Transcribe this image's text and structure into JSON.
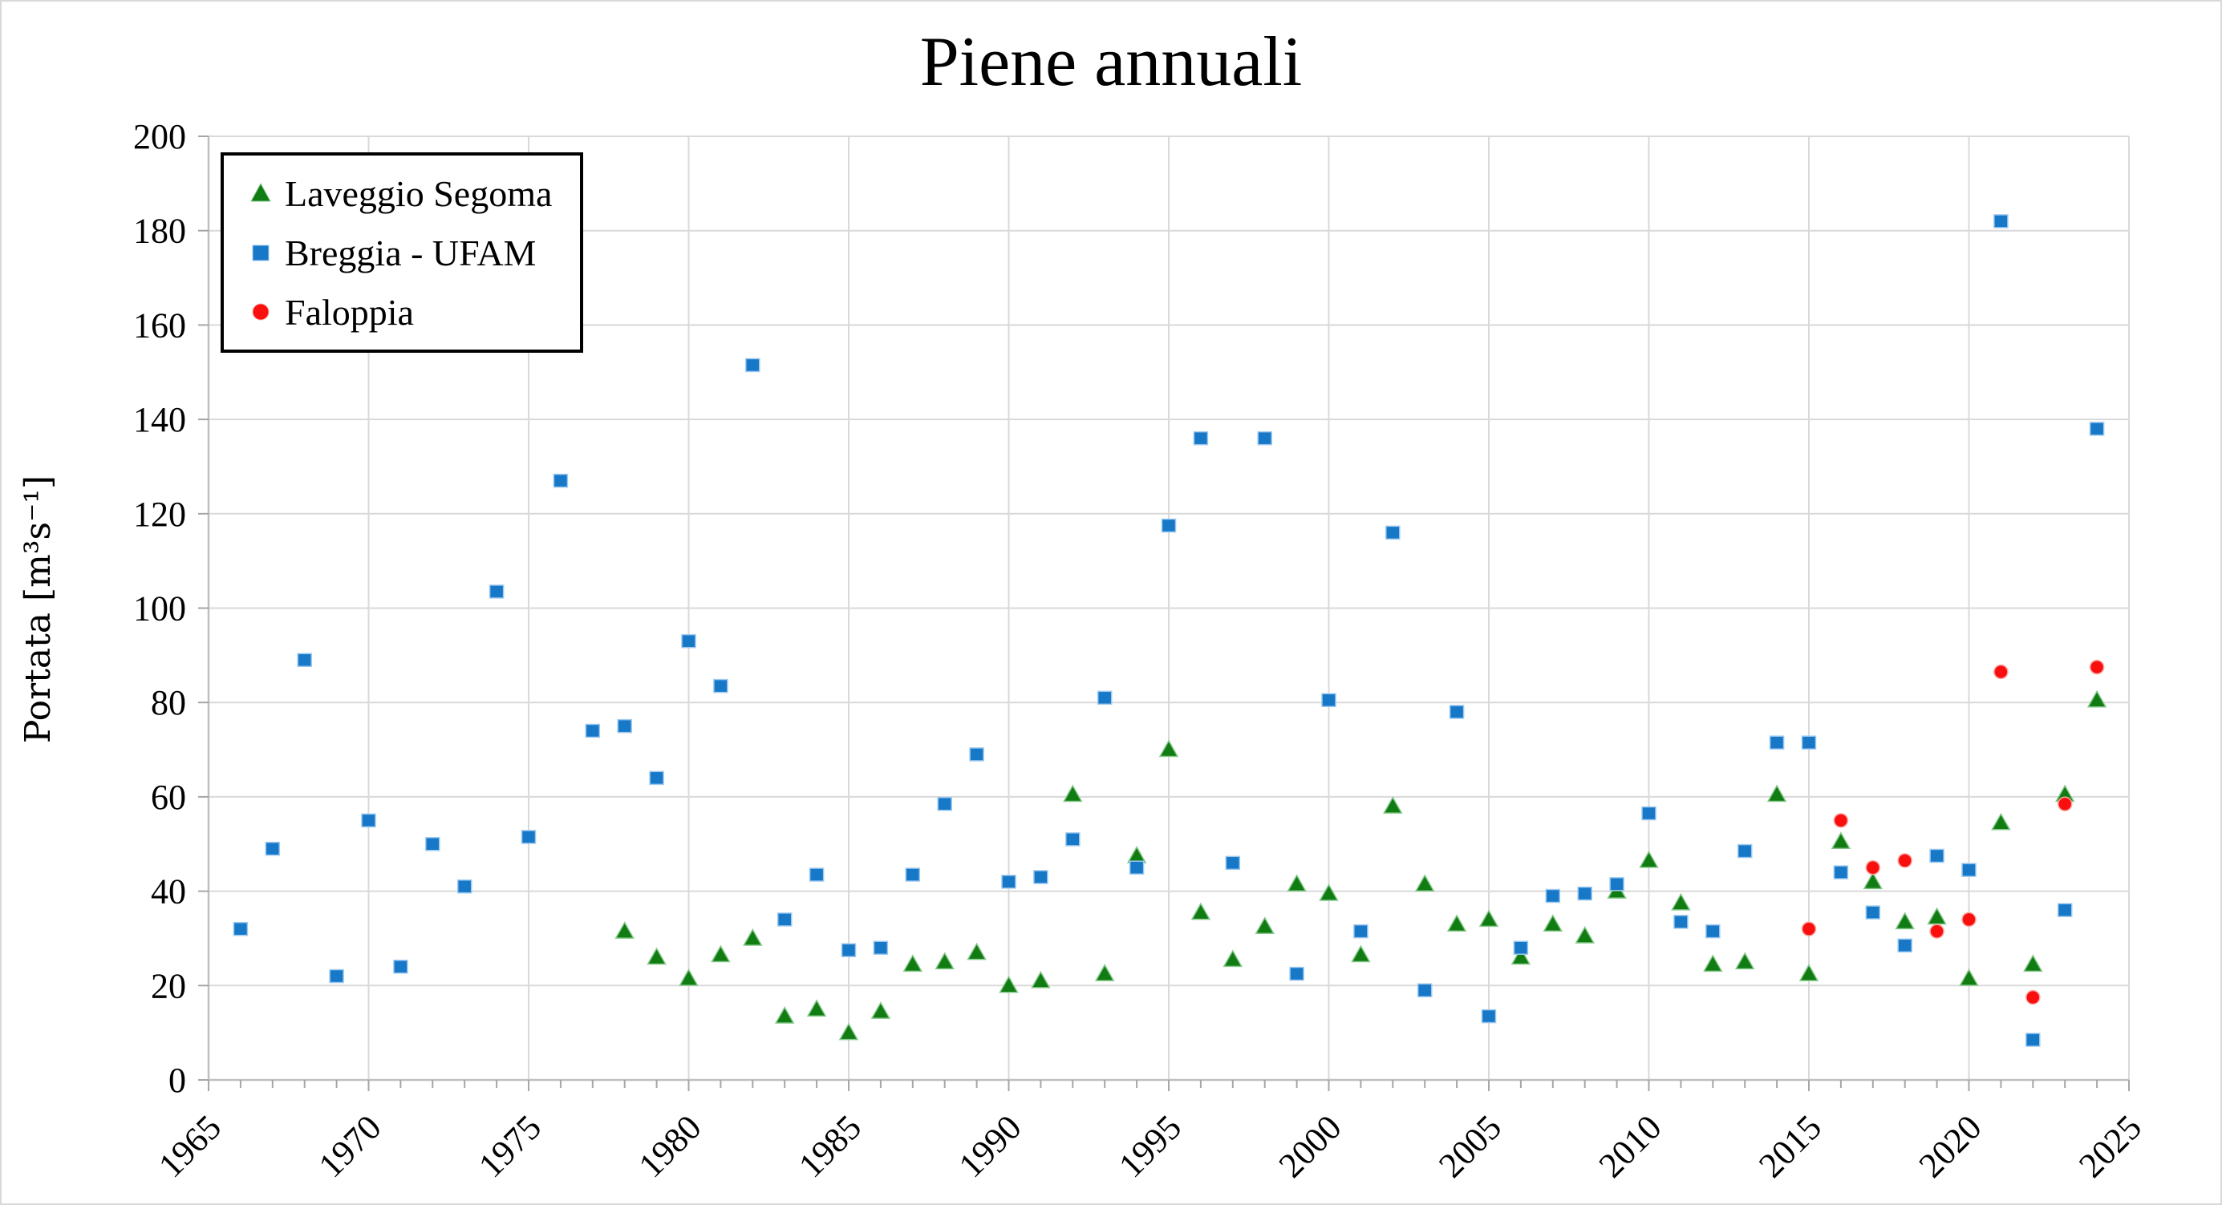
{
  "chart_data": {
    "type": "scatter",
    "title": "Piene annuali",
    "xlabel": "",
    "ylabel": "Portata [m³s⁻¹]",
    "xlim": [
      1965,
      2025
    ],
    "ylim": [
      0,
      200
    ],
    "x_ticks": [
      1965,
      1970,
      1975,
      1980,
      1985,
      1990,
      1995,
      2000,
      2005,
      2010,
      2015,
      2020,
      2025
    ],
    "x_minor_tick_step": 1,
    "y_ticks": [
      0,
      20,
      40,
      60,
      80,
      100,
      120,
      140,
      160,
      180,
      200
    ],
    "grid": true,
    "legend_position": "inside-top-left",
    "grid_color": "#d9d9d9",
    "axis_color": "#bfbfbf",
    "tick_color": "#a6a6a6",
    "series": [
      {
        "name": "Laveggio Segoma",
        "marker": "triangle",
        "color": "#107C12",
        "edge": "#86c98c",
        "points": [
          [
            1978,
            31.5
          ],
          [
            1979,
            26
          ],
          [
            1980,
            21.5
          ],
          [
            1981,
            26.5
          ],
          [
            1982,
            30
          ],
          [
            1983,
            13.5
          ],
          [
            1984,
            15
          ],
          [
            1985,
            10
          ],
          [
            1986,
            14.5
          ],
          [
            1987,
            24.5
          ],
          [
            1988,
            25
          ],
          [
            1989,
            27
          ],
          [
            1990,
            20
          ],
          [
            1991,
            21
          ],
          [
            1992,
            60.5
          ],
          [
            1993,
            22.5
          ],
          [
            1994,
            47.5
          ],
          [
            1995,
            70
          ],
          [
            1996,
            35.5
          ],
          [
            1997,
            25.5
          ],
          [
            1998,
            32.5
          ],
          [
            1999,
            41.5
          ],
          [
            2000,
            39.5
          ],
          [
            2001,
            26.5
          ],
          [
            2002,
            58
          ],
          [
            2003,
            41.5
          ],
          [
            2004,
            33
          ],
          [
            2005,
            34
          ],
          [
            2006,
            26
          ],
          [
            2007,
            33
          ],
          [
            2008,
            30.5
          ],
          [
            2009,
            40
          ],
          [
            2010,
            46.5
          ],
          [
            2011,
            37.5
          ],
          [
            2012,
            24.5
          ],
          [
            2013,
            25
          ],
          [
            2014,
            60.5
          ],
          [
            2015,
            22.5
          ],
          [
            2016,
            50.5
          ],
          [
            2017,
            42
          ],
          [
            2018,
            33.5
          ],
          [
            2019,
            34.5
          ],
          [
            2020,
            21.5
          ],
          [
            2021,
            54.5
          ],
          [
            2022,
            24.5
          ],
          [
            2023,
            60.5
          ],
          [
            2024,
            80.5
          ]
        ]
      },
      {
        "name": "Breggia - UFAM",
        "marker": "square",
        "color": "#1878C8",
        "edge": "#9dc9f0",
        "points": [
          [
            1966,
            32
          ],
          [
            1967,
            49
          ],
          [
            1968,
            89
          ],
          [
            1969,
            22
          ],
          [
            1970,
            55
          ],
          [
            1971,
            24
          ],
          [
            1972,
            50
          ],
          [
            1973,
            41
          ],
          [
            1974,
            103.5
          ],
          [
            1975,
            51.5
          ],
          [
            1976,
            127
          ],
          [
            1977,
            74
          ],
          [
            1978,
            75
          ],
          [
            1979,
            64
          ],
          [
            1980,
            93
          ],
          [
            1981,
            83.5
          ],
          [
            1982,
            151.5
          ],
          [
            1983,
            34
          ],
          [
            1984,
            43.5
          ],
          [
            1985,
            27.5
          ],
          [
            1986,
            28
          ],
          [
            1987,
            43.5
          ],
          [
            1988,
            58.5
          ],
          [
            1989,
            69
          ],
          [
            1990,
            42
          ],
          [
            1991,
            43
          ],
          [
            1992,
            51
          ],
          [
            1993,
            81
          ],
          [
            1994,
            45
          ],
          [
            1995,
            117.5
          ],
          [
            1996,
            136
          ],
          [
            1997,
            46
          ],
          [
            1998,
            136
          ],
          [
            1999,
            22.5
          ],
          [
            2000,
            80.5
          ],
          [
            2001,
            31.5
          ],
          [
            2002,
            116
          ],
          [
            2003,
            19
          ],
          [
            2004,
            78
          ],
          [
            2005,
            13.5
          ],
          [
            2006,
            28
          ],
          [
            2007,
            39
          ],
          [
            2008,
            39.5
          ],
          [
            2009,
            41.5
          ],
          [
            2010,
            56.5
          ],
          [
            2011,
            33.5
          ],
          [
            2012,
            31.5
          ],
          [
            2013,
            48.5
          ],
          [
            2014,
            71.5
          ],
          [
            2015,
            71.5
          ],
          [
            2016,
            44
          ],
          [
            2017,
            35.5
          ],
          [
            2018,
            28.5
          ],
          [
            2019,
            47.5
          ],
          [
            2020,
            44.5
          ],
          [
            2021,
            182
          ],
          [
            2022,
            8.5
          ],
          [
            2023,
            36
          ],
          [
            2024,
            138
          ]
        ]
      },
      {
        "name": "Faloppia",
        "marker": "circle",
        "color": "#FA0F0F",
        "edge": "#fba9a4",
        "points": [
          [
            2015,
            32
          ],
          [
            2016,
            55
          ],
          [
            2017,
            45
          ],
          [
            2018,
            46.5
          ],
          [
            2019,
            31.5
          ],
          [
            2020,
            34
          ],
          [
            2021,
            86.5
          ],
          [
            2022,
            17.5
          ],
          [
            2023,
            58.5
          ],
          [
            2024,
            87.5
          ]
        ]
      }
    ]
  }
}
